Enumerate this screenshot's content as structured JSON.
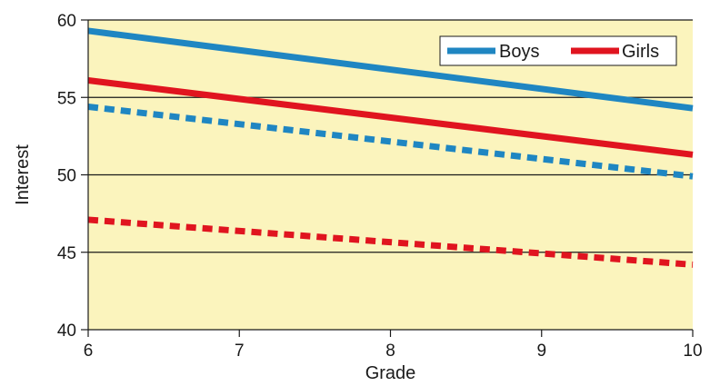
{
  "chart_data": {
    "type": "line",
    "title": "",
    "xlabel": "Grade",
    "ylabel": "Interest",
    "xlim": [
      6,
      10
    ],
    "ylim": [
      40,
      60
    ],
    "xticks": [
      6,
      7,
      8,
      9,
      10
    ],
    "yticks": [
      40,
      45,
      50,
      55,
      60
    ],
    "grid": "horizontal",
    "legend": "top-right",
    "plot_background": "#fbf4bd",
    "series": [
      {
        "name": "Boys",
        "x": [
          6,
          10
        ],
        "y": [
          59.3,
          54.3
        ],
        "color": "#1f86c2",
        "style": "solid"
      },
      {
        "name": "Girls",
        "x": [
          6,
          10
        ],
        "y": [
          56.1,
          51.3
        ],
        "color": "#e0141f",
        "style": "solid"
      },
      {
        "x": [
          6,
          10
        ],
        "y": [
          54.4,
          49.9
        ],
        "color": "#1f86c2",
        "style": "dashed"
      },
      {
        "x": [
          6,
          10
        ],
        "y": [
          47.1,
          44.2
        ],
        "color": "#e0141f",
        "style": "dashed"
      }
    ]
  }
}
